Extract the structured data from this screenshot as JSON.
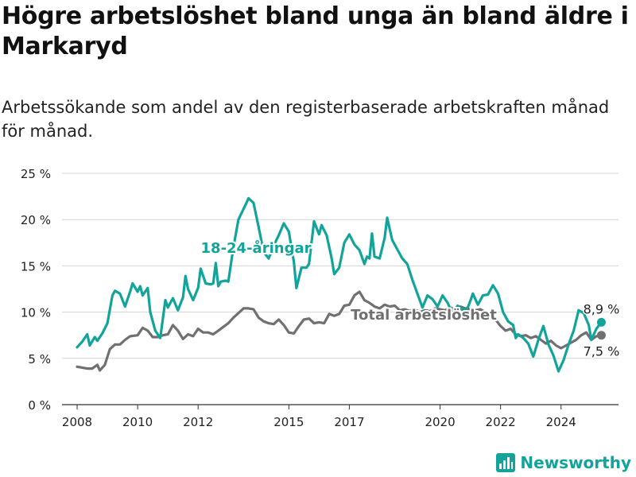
{
  "title": "Högre arbetslöshet bland unga än bland äldre i Markaryd",
  "subtitle": "Arbetssökande som andel av den registerbaserade arbetskraften månad för månad.",
  "brand": "Newsworthy",
  "colors": {
    "youth": "#12a49a",
    "total": "#707070",
    "grid": "#d4d4d4"
  },
  "chart_data": {
    "type": "line",
    "y_ticks": [
      "0 %",
      "5 %",
      "10 %",
      "15 %",
      "20 %",
      "25 %"
    ],
    "x_ticks": [
      "2008",
      "2010",
      "2012",
      "2015",
      "2017",
      "2020",
      "2022",
      "2024"
    ],
    "ylim": [
      0,
      25
    ],
    "grid": true,
    "series": [
      {
        "name": "18-24-åringar",
        "end_label": "8,9 %",
        "points": [
          [
            "2008-01",
            6.2
          ],
          [
            "2008-03",
            6.8
          ],
          [
            "2008-05",
            7.6
          ],
          [
            "2008-06",
            6.4
          ],
          [
            "2008-08",
            7.3
          ],
          [
            "2008-09",
            6.9
          ],
          [
            "2008-11",
            7.7
          ],
          [
            "2009-01",
            8.8
          ],
          [
            "2009-03",
            11.8
          ],
          [
            "2009-04",
            12.3
          ],
          [
            "2009-06",
            12.0
          ],
          [
            "2009-08",
            10.6
          ],
          [
            "2009-10",
            12.2
          ],
          [
            "2009-11",
            13.1
          ],
          [
            "2010-01",
            12.2
          ],
          [
            "2010-02",
            12.8
          ],
          [
            "2010-03",
            11.8
          ],
          [
            "2010-05",
            12.6
          ],
          [
            "2010-06",
            10.0
          ],
          [
            "2010-08",
            8.0
          ],
          [
            "2010-10",
            7.2
          ],
          [
            "2010-12",
            11.3
          ],
          [
            "2011-01",
            10.5
          ],
          [
            "2011-03",
            11.5
          ],
          [
            "2011-05",
            10.2
          ],
          [
            "2011-07",
            11.6
          ],
          [
            "2011-08",
            13.9
          ],
          [
            "2011-09",
            12.5
          ],
          [
            "2011-11",
            11.3
          ],
          [
            "2012-01",
            12.6
          ],
          [
            "2012-02",
            14.7
          ],
          [
            "2012-04",
            13.1
          ],
          [
            "2012-06",
            13.0
          ],
          [
            "2012-07",
            13.1
          ],
          [
            "2012-08",
            15.3
          ],
          [
            "2012-09",
            12.8
          ],
          [
            "2012-10",
            13.3
          ],
          [
            "2012-12",
            13.4
          ],
          [
            "2013-01",
            13.3
          ],
          [
            "2013-03",
            17.0
          ],
          [
            "2013-05",
            20.0
          ],
          [
            "2013-08",
            21.7
          ],
          [
            "2013-09",
            22.3
          ],
          [
            "2013-11",
            21.8
          ],
          [
            "2014-01",
            19.2
          ],
          [
            "2014-03",
            16.5
          ],
          [
            "2014-05",
            15.8
          ],
          [
            "2014-07",
            17.2
          ],
          [
            "2014-09",
            18.3
          ],
          [
            "2014-11",
            19.6
          ],
          [
            "2015-01",
            18.7
          ],
          [
            "2015-03",
            15.4
          ],
          [
            "2015-04",
            12.6
          ],
          [
            "2015-06",
            14.8
          ],
          [
            "2015-08",
            14.8
          ],
          [
            "2015-09",
            15.2
          ],
          [
            "2015-11",
            19.8
          ],
          [
            "2016-01",
            18.4
          ],
          [
            "2016-02",
            19.4
          ],
          [
            "2016-04",
            18.3
          ],
          [
            "2016-06",
            15.8
          ],
          [
            "2016-07",
            14.1
          ],
          [
            "2016-09",
            14.8
          ],
          [
            "2016-11",
            17.5
          ],
          [
            "2017-01",
            18.4
          ],
          [
            "2017-03",
            17.3
          ],
          [
            "2017-05",
            16.7
          ],
          [
            "2017-07",
            15.2
          ],
          [
            "2017-08",
            16.0
          ],
          [
            "2017-09",
            15.8
          ],
          [
            "2017-10",
            18.5
          ],
          [
            "2017-11",
            16.0
          ],
          [
            "2018-01",
            15.8
          ],
          [
            "2018-03",
            18.0
          ],
          [
            "2018-04",
            20.2
          ],
          [
            "2018-06",
            17.8
          ],
          [
            "2018-08",
            16.8
          ],
          [
            "2018-10",
            15.8
          ],
          [
            "2018-12",
            15.2
          ],
          [
            "2019-02",
            13.5
          ],
          [
            "2019-04",
            12.0
          ],
          [
            "2019-06",
            10.5
          ],
          [
            "2019-08",
            11.8
          ],
          [
            "2019-10",
            11.4
          ],
          [
            "2019-12",
            10.6
          ],
          [
            "2020-02",
            11.8
          ],
          [
            "2020-04",
            11.0
          ],
          [
            "2020-06",
            9.8
          ],
          [
            "2020-08",
            10.7
          ],
          [
            "2020-10",
            10.2
          ],
          [
            "2020-12",
            10.5
          ],
          [
            "2021-01",
            11.2
          ],
          [
            "2021-02",
            12.0
          ],
          [
            "2021-04",
            10.8
          ],
          [
            "2021-06",
            11.8
          ],
          [
            "2021-08",
            11.9
          ],
          [
            "2021-10",
            12.9
          ],
          [
            "2021-12",
            12.0
          ],
          [
            "2022-02",
            10.0
          ],
          [
            "2022-04",
            9.0
          ],
          [
            "2022-06",
            8.6
          ],
          [
            "2022-07",
            7.2
          ],
          [
            "2022-08",
            7.6
          ],
          [
            "2022-10",
            7.2
          ],
          [
            "2022-12",
            6.6
          ],
          [
            "2023-02",
            5.2
          ],
          [
            "2023-04",
            7.0
          ],
          [
            "2023-06",
            8.5
          ],
          [
            "2023-08",
            6.5
          ],
          [
            "2023-10",
            5.3
          ],
          [
            "2023-12",
            3.6
          ],
          [
            "2024-02",
            4.8
          ],
          [
            "2024-04",
            6.5
          ],
          [
            "2024-06",
            8.0
          ],
          [
            "2024-08",
            10.2
          ],
          [
            "2024-10",
            9.9
          ],
          [
            "2024-12",
            8.6
          ],
          [
            "2025-01",
            7.0
          ],
          [
            "2025-03",
            8.2
          ],
          [
            "2025-05",
            8.9
          ]
        ]
      },
      {
        "name": "Total arbetslöshet",
        "end_label": "7,5 %",
        "points": [
          [
            "2008-01",
            4.1
          ],
          [
            "2008-03",
            4.0
          ],
          [
            "2008-05",
            3.9
          ],
          [
            "2008-07",
            3.9
          ],
          [
            "2008-09",
            4.3
          ],
          [
            "2008-10",
            3.7
          ],
          [
            "2008-12",
            4.3
          ],
          [
            "2009-02",
            6.0
          ],
          [
            "2009-04",
            6.5
          ],
          [
            "2009-06",
            6.5
          ],
          [
            "2009-08",
            7.0
          ],
          [
            "2009-10",
            7.4
          ],
          [
            "2010-01",
            7.5
          ],
          [
            "2010-03",
            8.3
          ],
          [
            "2010-05",
            8.0
          ],
          [
            "2010-07",
            7.3
          ],
          [
            "2010-09",
            7.3
          ],
          [
            "2010-11",
            7.5
          ],
          [
            "2011-01",
            7.6
          ],
          [
            "2011-03",
            8.6
          ],
          [
            "2011-05",
            8.0
          ],
          [
            "2011-07",
            7.1
          ],
          [
            "2011-09",
            7.6
          ],
          [
            "2011-11",
            7.4
          ],
          [
            "2012-01",
            8.2
          ],
          [
            "2012-03",
            7.8
          ],
          [
            "2012-05",
            7.8
          ],
          [
            "2012-07",
            7.6
          ],
          [
            "2012-09",
            8.0
          ],
          [
            "2012-11",
            8.4
          ],
          [
            "2013-01",
            8.8
          ],
          [
            "2013-03",
            9.4
          ],
          [
            "2013-05",
            9.9
          ],
          [
            "2013-07",
            10.4
          ],
          [
            "2013-09",
            10.4
          ],
          [
            "2013-11",
            10.3
          ],
          [
            "2014-01",
            9.4
          ],
          [
            "2014-03",
            9.0
          ],
          [
            "2014-05",
            8.8
          ],
          [
            "2014-07",
            8.7
          ],
          [
            "2014-09",
            9.2
          ],
          [
            "2014-11",
            8.6
          ],
          [
            "2015-01",
            7.8
          ],
          [
            "2015-03",
            7.7
          ],
          [
            "2015-05",
            8.5
          ],
          [
            "2015-07",
            9.2
          ],
          [
            "2015-09",
            9.3
          ],
          [
            "2015-11",
            8.8
          ],
          [
            "2016-01",
            8.9
          ],
          [
            "2016-03",
            8.8
          ],
          [
            "2016-05",
            9.8
          ],
          [
            "2016-07",
            9.6
          ],
          [
            "2016-09",
            9.8
          ],
          [
            "2016-11",
            10.7
          ],
          [
            "2017-01",
            10.8
          ],
          [
            "2017-03",
            11.8
          ],
          [
            "2017-05",
            12.2
          ],
          [
            "2017-07",
            11.3
          ],
          [
            "2017-09",
            11.0
          ],
          [
            "2017-11",
            10.6
          ],
          [
            "2018-01",
            10.4
          ],
          [
            "2018-03",
            10.8
          ],
          [
            "2018-05",
            10.6
          ],
          [
            "2018-07",
            10.7
          ],
          [
            "2018-09",
            10.2
          ],
          [
            "2018-11",
            10.3
          ],
          [
            "2019-01",
            10.1
          ],
          [
            "2019-03",
            10.3
          ],
          [
            "2019-05",
            10.0
          ],
          [
            "2019-07",
            10.2
          ],
          [
            "2019-09",
            10.1
          ],
          [
            "2019-11",
            10.4
          ],
          [
            "2020-01",
            10.3
          ],
          [
            "2020-03",
            10.2
          ],
          [
            "2020-05",
            10.5
          ],
          [
            "2020-07",
            10.3
          ],
          [
            "2020-09",
            10.6
          ],
          [
            "2020-11",
            10.4
          ],
          [
            "2021-01",
            10.3
          ],
          [
            "2021-03",
            10.2
          ],
          [
            "2021-05",
            10.3
          ],
          [
            "2021-07",
            10.0
          ],
          [
            "2021-09",
            9.5
          ],
          [
            "2021-11",
            9.2
          ],
          [
            "2022-01",
            8.5
          ],
          [
            "2022-03",
            8.0
          ],
          [
            "2022-05",
            8.2
          ],
          [
            "2022-07",
            7.6
          ],
          [
            "2022-09",
            7.4
          ],
          [
            "2022-11",
            7.5
          ],
          [
            "2023-01",
            7.2
          ],
          [
            "2023-03",
            7.4
          ],
          [
            "2023-05",
            7.0
          ],
          [
            "2023-07",
            6.6
          ],
          [
            "2023-09",
            6.9
          ],
          [
            "2023-11",
            6.4
          ],
          [
            "2024-01",
            6.1
          ],
          [
            "2024-03",
            6.4
          ],
          [
            "2024-05",
            6.7
          ],
          [
            "2024-07",
            7.0
          ],
          [
            "2024-09",
            7.5
          ],
          [
            "2024-11",
            7.8
          ],
          [
            "2025-01",
            7.0
          ],
          [
            "2025-03",
            7.4
          ],
          [
            "2025-05",
            7.5
          ]
        ]
      }
    ]
  }
}
